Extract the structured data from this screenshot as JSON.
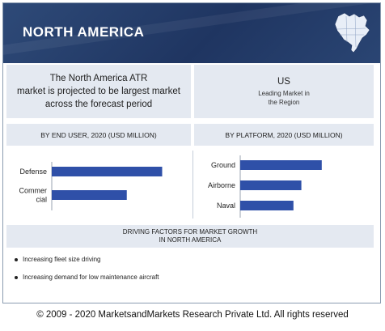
{
  "header": {
    "title": "NORTH AMERICA",
    "map_icon": "north-america-map-icon"
  },
  "headline": {
    "line1": "The North America ATR",
    "line2": "market is projected to be largest market",
    "line3": "across the forecast period"
  },
  "leading": {
    "country": "US",
    "description_line1": "Leading Market in",
    "description_line2": "the Region"
  },
  "subtitles": {
    "end_user": "BY END USER, 2020 (USD MILLION)",
    "platform": "BY PLATFORM, 2020 (USD MILLION)"
  },
  "chart_data": [
    {
      "type": "bar",
      "orientation": "horizontal",
      "title": "BY END USER, 2020 (USD MILLION)",
      "categories": [
        "Defense",
        "Commercial"
      ],
      "category_label_lines": [
        [
          "Defense"
        ],
        [
          "Commer",
          "cial"
        ]
      ],
      "values": [
        78,
        53
      ],
      "xlim": [
        0,
        100
      ],
      "grid": false,
      "bar_color": "#2f50a8"
    },
    {
      "type": "bar",
      "orientation": "horizontal",
      "title": "BY PLATFORM, 2020 (USD MILLION)",
      "categories": [
        "Ground",
        "Airborne",
        "Naval"
      ],
      "category_label_lines": [
        [
          "Ground"
        ],
        [
          "Airborne"
        ],
        [
          "Naval"
        ]
      ],
      "values": [
        72,
        54,
        47
      ],
      "xlim": [
        0,
        100
      ],
      "grid": false,
      "bar_color": "#2f50a8"
    }
  ],
  "factors": {
    "title_line1": "DRIVING FACTORS FOR MARKET GROWTH",
    "title_line2": "IN NORTH AMERICA",
    "items": [
      "Increasing fleet size driving",
      "Increasing demand for low maintenance aircraft"
    ]
  },
  "copyright": "© 2009 - 2020 MarketsandMarkets Research Private Ltd. All rights reserved"
}
